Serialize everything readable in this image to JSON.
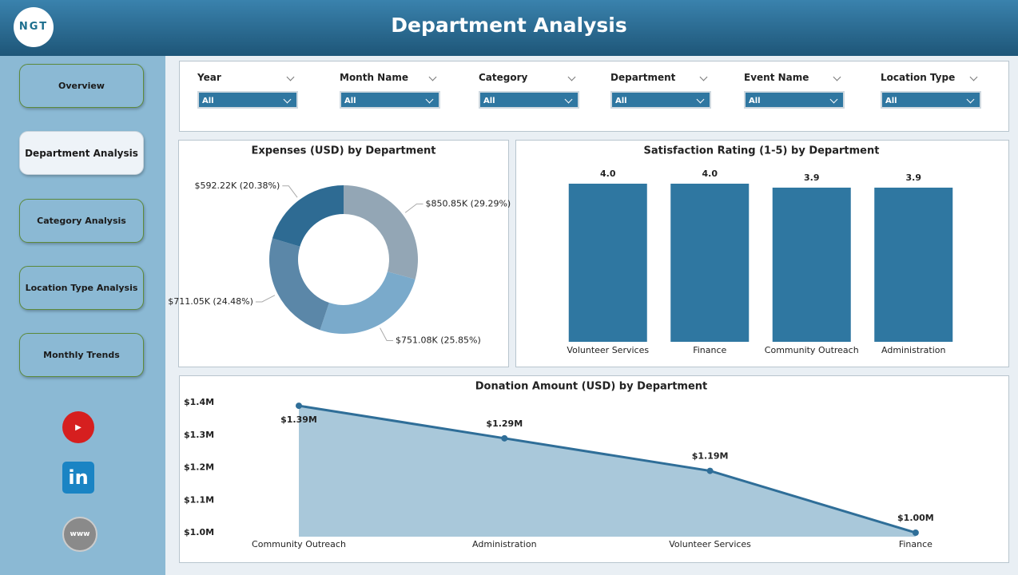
{
  "header": {
    "logo": "NGT",
    "title": "Department Analysis"
  },
  "nav": [
    "Overview",
    "Department Analysis",
    "Category Analysis",
    "Location Type Analysis",
    "Monthly Trends"
  ],
  "nav_active": 1,
  "filters": [
    {
      "label": "Year",
      "value": "All"
    },
    {
      "label": "Month Name",
      "value": "All"
    },
    {
      "label": "Category",
      "value": "All"
    },
    {
      "label": "Department",
      "value": "All"
    },
    {
      "label": "Event Name",
      "value": "All"
    },
    {
      "label": "Location Type",
      "value": "All"
    }
  ],
  "chart_data": [
    {
      "type": "pie",
      "donut": true,
      "title": "Expenses (USD) by Department",
      "values": [
        850850,
        751080,
        711050,
        592220
      ],
      "value_labels": [
        "$850.85K (29.29%)",
        "$751.08K (25.85%)",
        "$711.05K (24.48%)",
        "$592.22K (20.38%)"
      ],
      "colors": [
        "#93a6b5",
        "#7aaacb",
        "#5b87a8",
        "#2e6b93"
      ]
    },
    {
      "type": "bar",
      "title": "Satisfaction Rating (1-5) by Department",
      "categories": [
        "Volunteer Services",
        "Finance",
        "Community Outreach",
        "Administration"
      ],
      "values": [
        4.0,
        4.0,
        3.9,
        3.9
      ],
      "value_labels": [
        "4.0",
        "4.0",
        "3.9",
        "3.9"
      ],
      "color": "#2f77a1"
    },
    {
      "type": "area",
      "title": "Donation Amount (USD) by Department",
      "categories": [
        "Community Outreach",
        "Administration",
        "Volunteer Services",
        "Finance"
      ],
      "values": [
        1390000,
        1290000,
        1190000,
        1000000
      ],
      "value_labels": [
        "$1.39M",
        "$1.29M",
        "$1.19M",
        "$1.00M"
      ],
      "color": "#2f6e98",
      "fill": "#a9c8da",
      "ylim": [
        1000000,
        1400000
      ],
      "yticks": [
        {
          "value": 1000000,
          "label": "$1.0M"
        },
        {
          "value": 1100000,
          "label": "$1.1M"
        },
        {
          "value": 1200000,
          "label": "$1.2M"
        },
        {
          "value": 1300000,
          "label": "$1.3M"
        },
        {
          "value": 1400000,
          "label": "$1.4M"
        }
      ]
    }
  ]
}
